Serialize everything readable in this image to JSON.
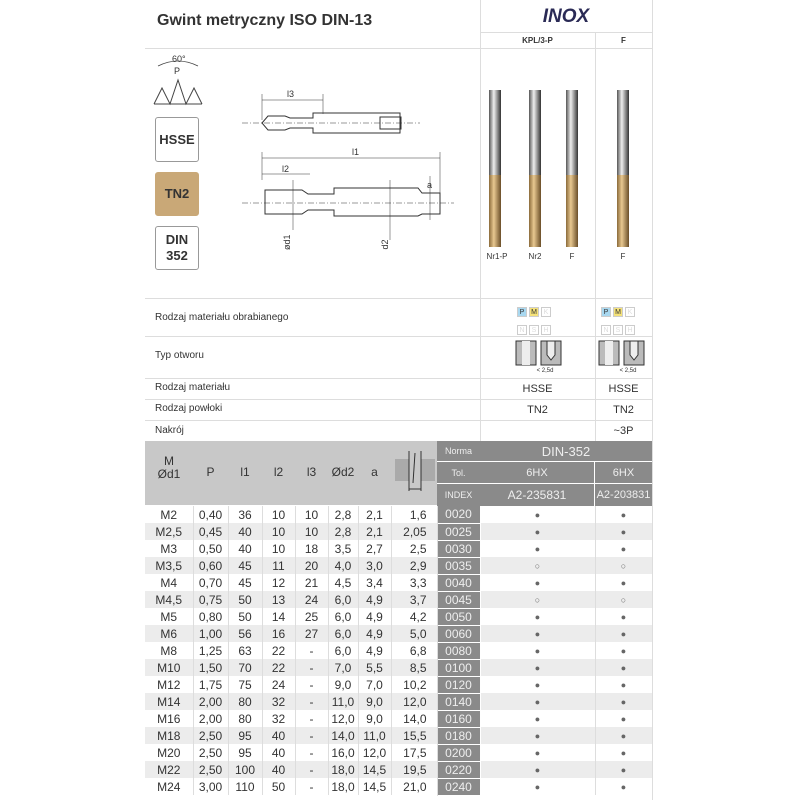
{
  "title": "Gwint metryczny ISO DIN-13",
  "brand": "INOX",
  "variants": [
    {
      "label": "KPL/3-P",
      "tools": [
        "Nr1-P",
        "Nr2",
        "F"
      ]
    },
    {
      "label": "F",
      "tools": [
        "F"
      ]
    }
  ],
  "badges": {
    "angle": "60°",
    "pitch": "P",
    "material": "HSSE",
    "coating": "TN2",
    "din_line1": "DIN",
    "din_line2": "352"
  },
  "drawing_labels": {
    "l3": "l3",
    "l1": "l1",
    "l2": "l2",
    "a": "a",
    "d1": "ød1",
    "d2": "ød2"
  },
  "properties": [
    {
      "label": "Rodzaj materiału obrabianego",
      "col1": "",
      "col2": ""
    },
    {
      "label": "Typ otworu",
      "col1": "< 2,5d",
      "col2": "< 2,5d"
    },
    {
      "label": "Rodzaj materiału",
      "col1": "HSSE",
      "col2": "HSSE"
    },
    {
      "label": "Rodzaj powłoki",
      "col1": "TN2",
      "col2": "TN2"
    },
    {
      "label": "Nakrój",
      "col1": "",
      "col2": "~3P"
    }
  ],
  "material_groups": {
    "row1": [
      "P",
      "M",
      "K"
    ],
    "row2": [
      "N",
      "S",
      "H"
    ],
    "active": [
      "P",
      "M"
    ],
    "colors": {
      "P": "#a8d8f0",
      "M": "#f5e27a"
    }
  },
  "table_header": {
    "m": "M",
    "d1": "Ød1",
    "p": "P",
    "l1": "l1",
    "l2": "l2",
    "l3": "l3",
    "d2": "Ød2",
    "a": "a",
    "norma": "Norma",
    "tol": "Tol.",
    "index": "INDEX",
    "norma_val": "DIN-352",
    "tol1": "6HX",
    "tol2": "6HX",
    "index1": "A2-235831",
    "index2": "A2-203831"
  },
  "rows": [
    [
      "M2",
      "0,40",
      "36",
      "10",
      "10",
      "2,8",
      "2,1",
      "1,6",
      "0020",
      "●",
      "●"
    ],
    [
      "M2,5",
      "0,45",
      "40",
      "10",
      "10",
      "2,8",
      "2,1",
      "2,05",
      "0025",
      "●",
      "●"
    ],
    [
      "M3",
      "0,50",
      "40",
      "10",
      "18",
      "3,5",
      "2,7",
      "2,5",
      "0030",
      "●",
      "●"
    ],
    [
      "M3,5",
      "0,60",
      "45",
      "11",
      "20",
      "4,0",
      "3,0",
      "2,9",
      "0035",
      "○",
      "○"
    ],
    [
      "M4",
      "0,70",
      "45",
      "12",
      "21",
      "4,5",
      "3,4",
      "3,3",
      "0040",
      "●",
      "●"
    ],
    [
      "M4,5",
      "0,75",
      "50",
      "13",
      "24",
      "6,0",
      "4,9",
      "3,7",
      "0045",
      "○",
      "○"
    ],
    [
      "M5",
      "0,80",
      "50",
      "14",
      "25",
      "6,0",
      "4,9",
      "4,2",
      "0050",
      "●",
      "●"
    ],
    [
      "M6",
      "1,00",
      "56",
      "16",
      "27",
      "6,0",
      "4,9",
      "5,0",
      "0060",
      "●",
      "●"
    ],
    [
      "M8",
      "1,25",
      "63",
      "22",
      "-",
      "6,0",
      "4,9",
      "6,8",
      "0080",
      "●",
      "●"
    ],
    [
      "M10",
      "1,50",
      "70",
      "22",
      "-",
      "7,0",
      "5,5",
      "8,5",
      "0100",
      "●",
      "●"
    ],
    [
      "M12",
      "1,75",
      "75",
      "24",
      "-",
      "9,0",
      "7,0",
      "10,2",
      "0120",
      "●",
      "●"
    ],
    [
      "M14",
      "2,00",
      "80",
      "32",
      "-",
      "11,0",
      "9,0",
      "12,0",
      "0140",
      "●",
      "●"
    ],
    [
      "M16",
      "2,00",
      "80",
      "32",
      "-",
      "12,0",
      "9,0",
      "14,0",
      "0160",
      "●",
      "●"
    ],
    [
      "M18",
      "2,50",
      "95",
      "40",
      "-",
      "14,0",
      "11,0",
      "15,5",
      "0180",
      "●",
      "●"
    ],
    [
      "M20",
      "2,50",
      "95",
      "40",
      "-",
      "16,0",
      "12,0",
      "17,5",
      "0200",
      "●",
      "●"
    ],
    [
      "M22",
      "2,50",
      "100",
      "40",
      "-",
      "18,0",
      "14,5",
      "19,5",
      "0220",
      "●",
      "●"
    ],
    [
      "M24",
      "3,00",
      "110",
      "50",
      "-",
      "18,0",
      "14,5",
      "21,0",
      "0240",
      "●",
      "●"
    ]
  ]
}
